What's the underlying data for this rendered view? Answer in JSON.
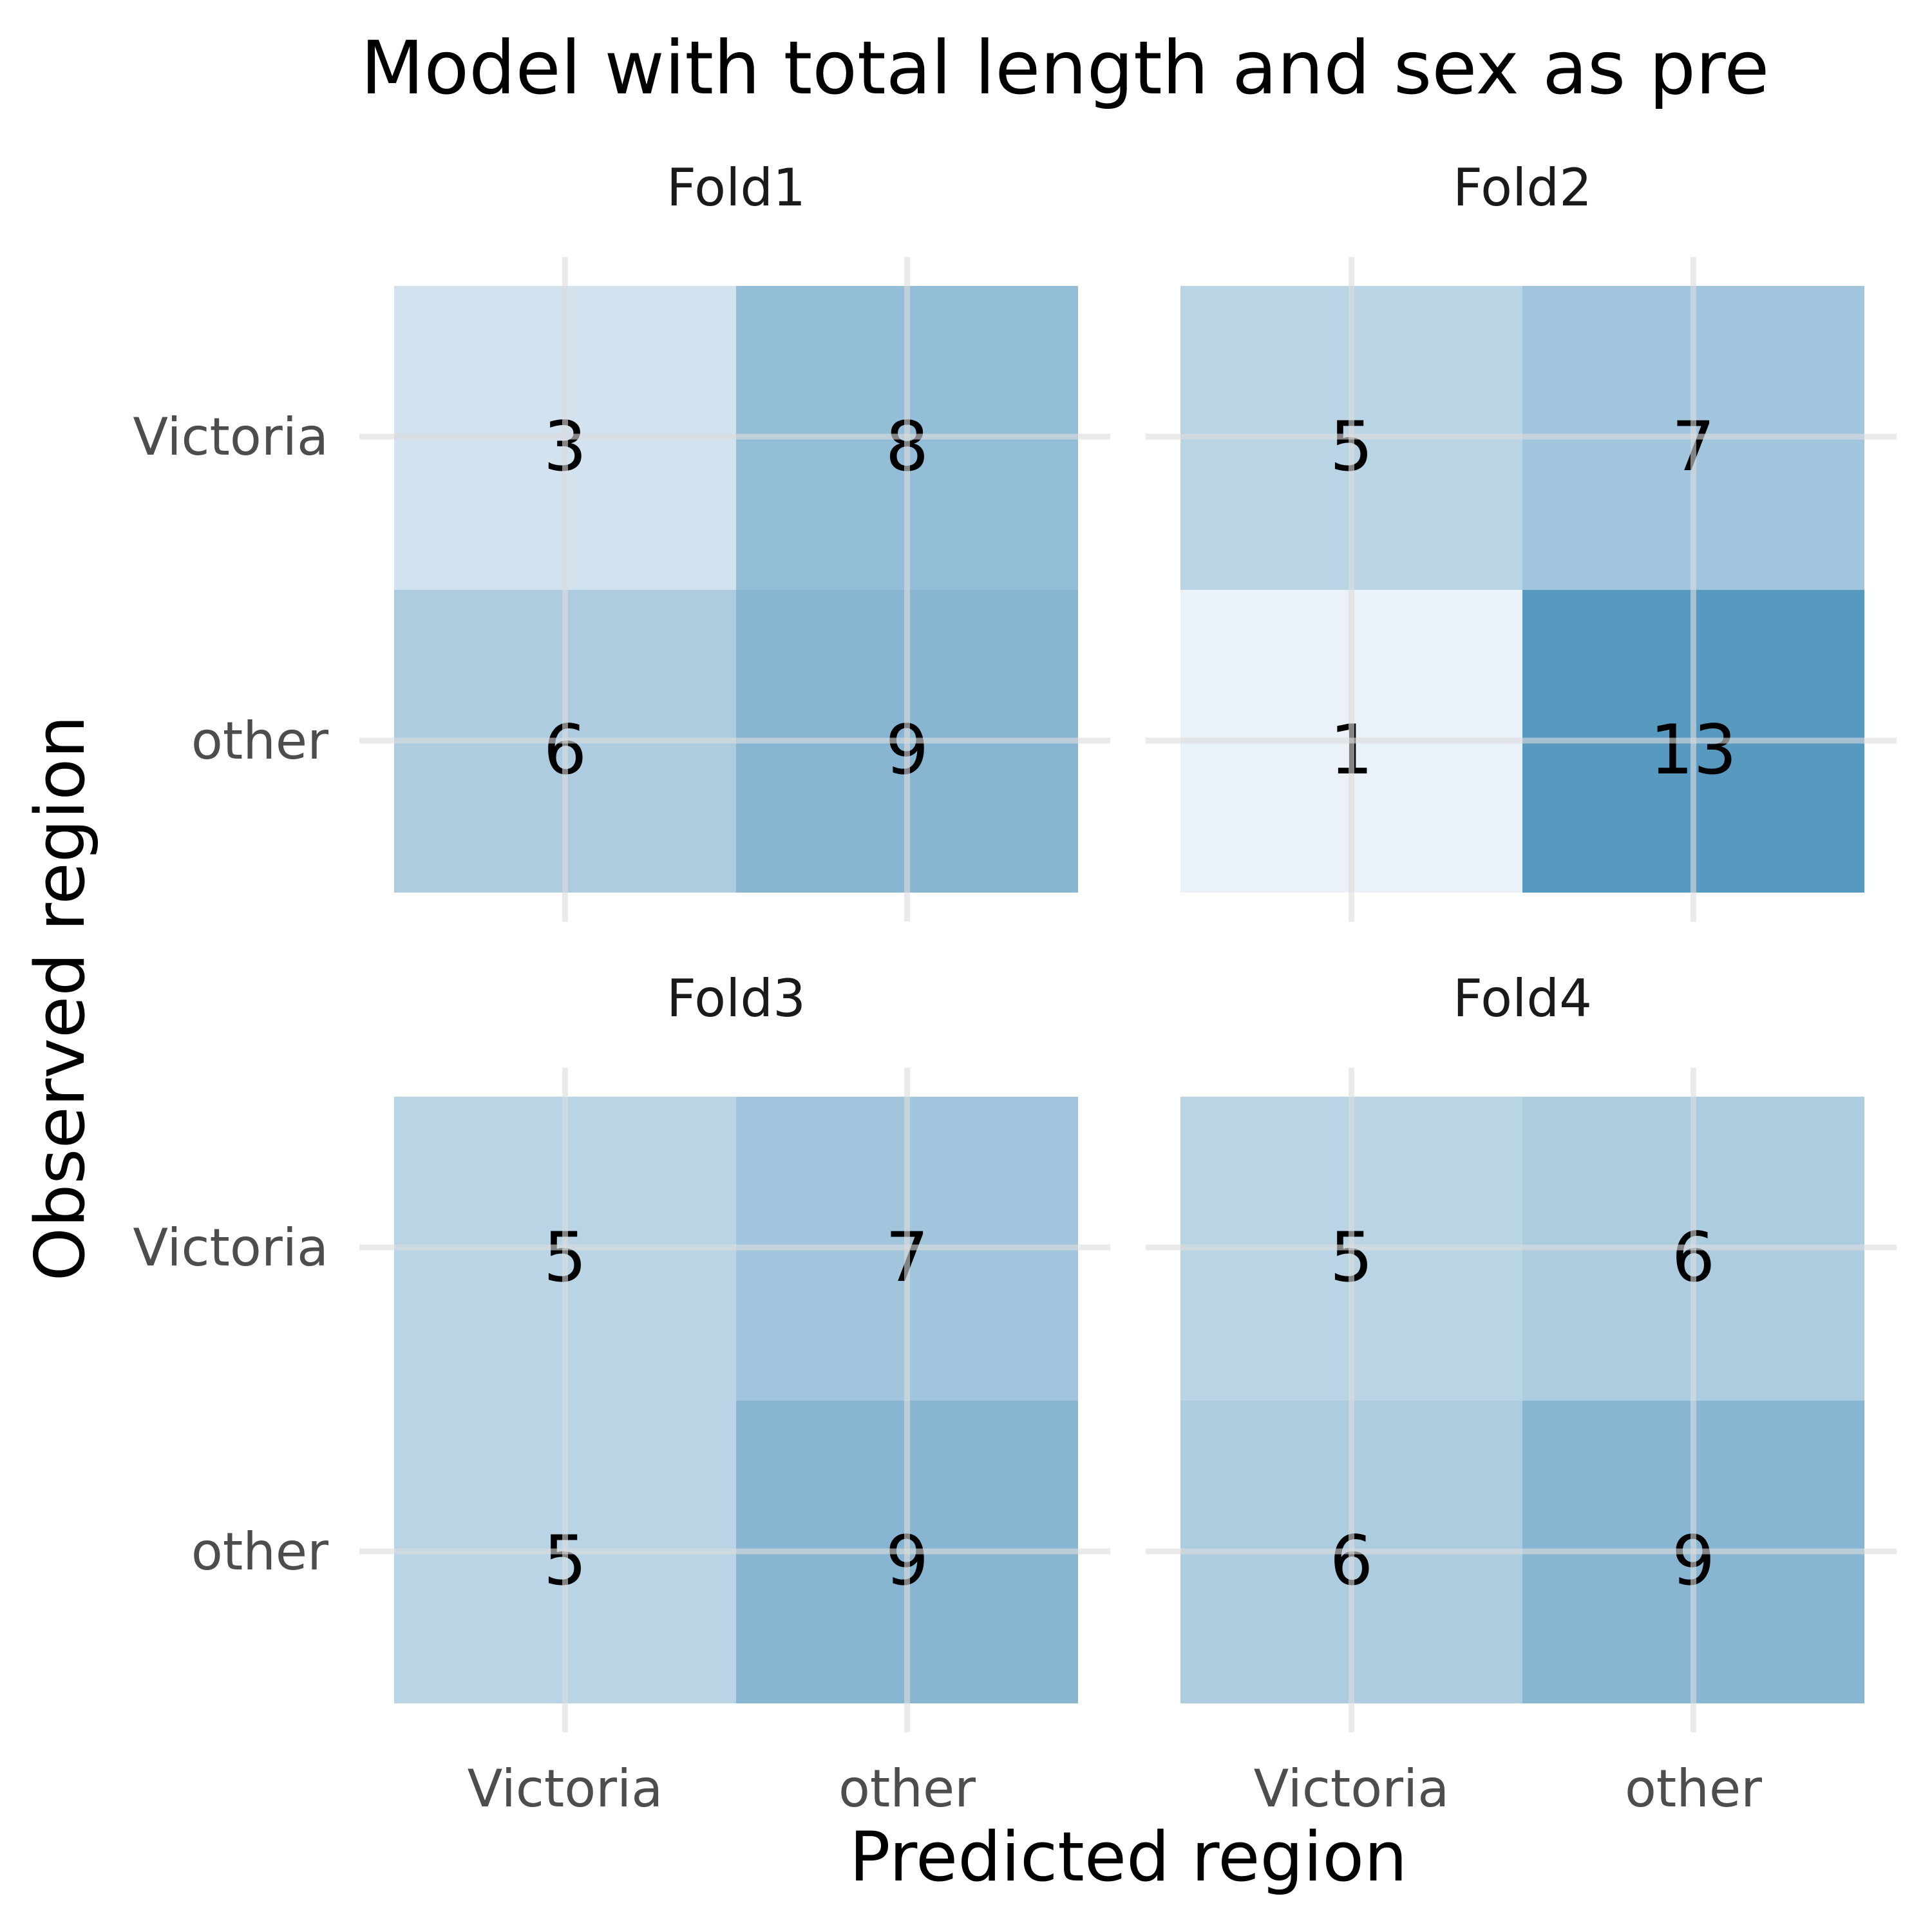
{
  "chart_data": {
    "type": "heatmap",
    "title": "Model with total length and sex as pre",
    "xlabel": "Predicted region",
    "ylabel": "Observed region",
    "x_categories": [
      "Victoria",
      "other"
    ],
    "y_categories": [
      "Victoria",
      "other"
    ],
    "fill_range": [
      1,
      13
    ],
    "colors": {
      "low": "#eaf1f8",
      "high": "#5799bf",
      "grid": "#dcdcdc"
    },
    "panels": [
      {
        "name": "Fold1",
        "cells": [
          {
            "observed": "Victoria",
            "predicted": "Victoria",
            "value": 3
          },
          {
            "observed": "Victoria",
            "predicted": "other",
            "value": 8
          },
          {
            "observed": "other",
            "predicted": "Victoria",
            "value": 6
          },
          {
            "observed": "other",
            "predicted": "other",
            "value": 9
          }
        ]
      },
      {
        "name": "Fold2",
        "cells": [
          {
            "observed": "Victoria",
            "predicted": "Victoria",
            "value": 5
          },
          {
            "observed": "Victoria",
            "predicted": "other",
            "value": 7
          },
          {
            "observed": "other",
            "predicted": "Victoria",
            "value": 1
          },
          {
            "observed": "other",
            "predicted": "other",
            "value": 13
          }
        ]
      },
      {
        "name": "Fold3",
        "cells": [
          {
            "observed": "Victoria",
            "predicted": "Victoria",
            "value": 5
          },
          {
            "observed": "Victoria",
            "predicted": "other",
            "value": 7
          },
          {
            "observed": "other",
            "predicted": "Victoria",
            "value": 5
          },
          {
            "observed": "other",
            "predicted": "other",
            "value": 9
          }
        ]
      },
      {
        "name": "Fold4",
        "cells": [
          {
            "observed": "Victoria",
            "predicted": "Victoria",
            "value": 5
          },
          {
            "observed": "Victoria",
            "predicted": "other",
            "value": 6
          },
          {
            "observed": "other",
            "predicted": "Victoria",
            "value": 6
          },
          {
            "observed": "other",
            "predicted": "other",
            "value": 9
          }
        ]
      }
    ]
  }
}
